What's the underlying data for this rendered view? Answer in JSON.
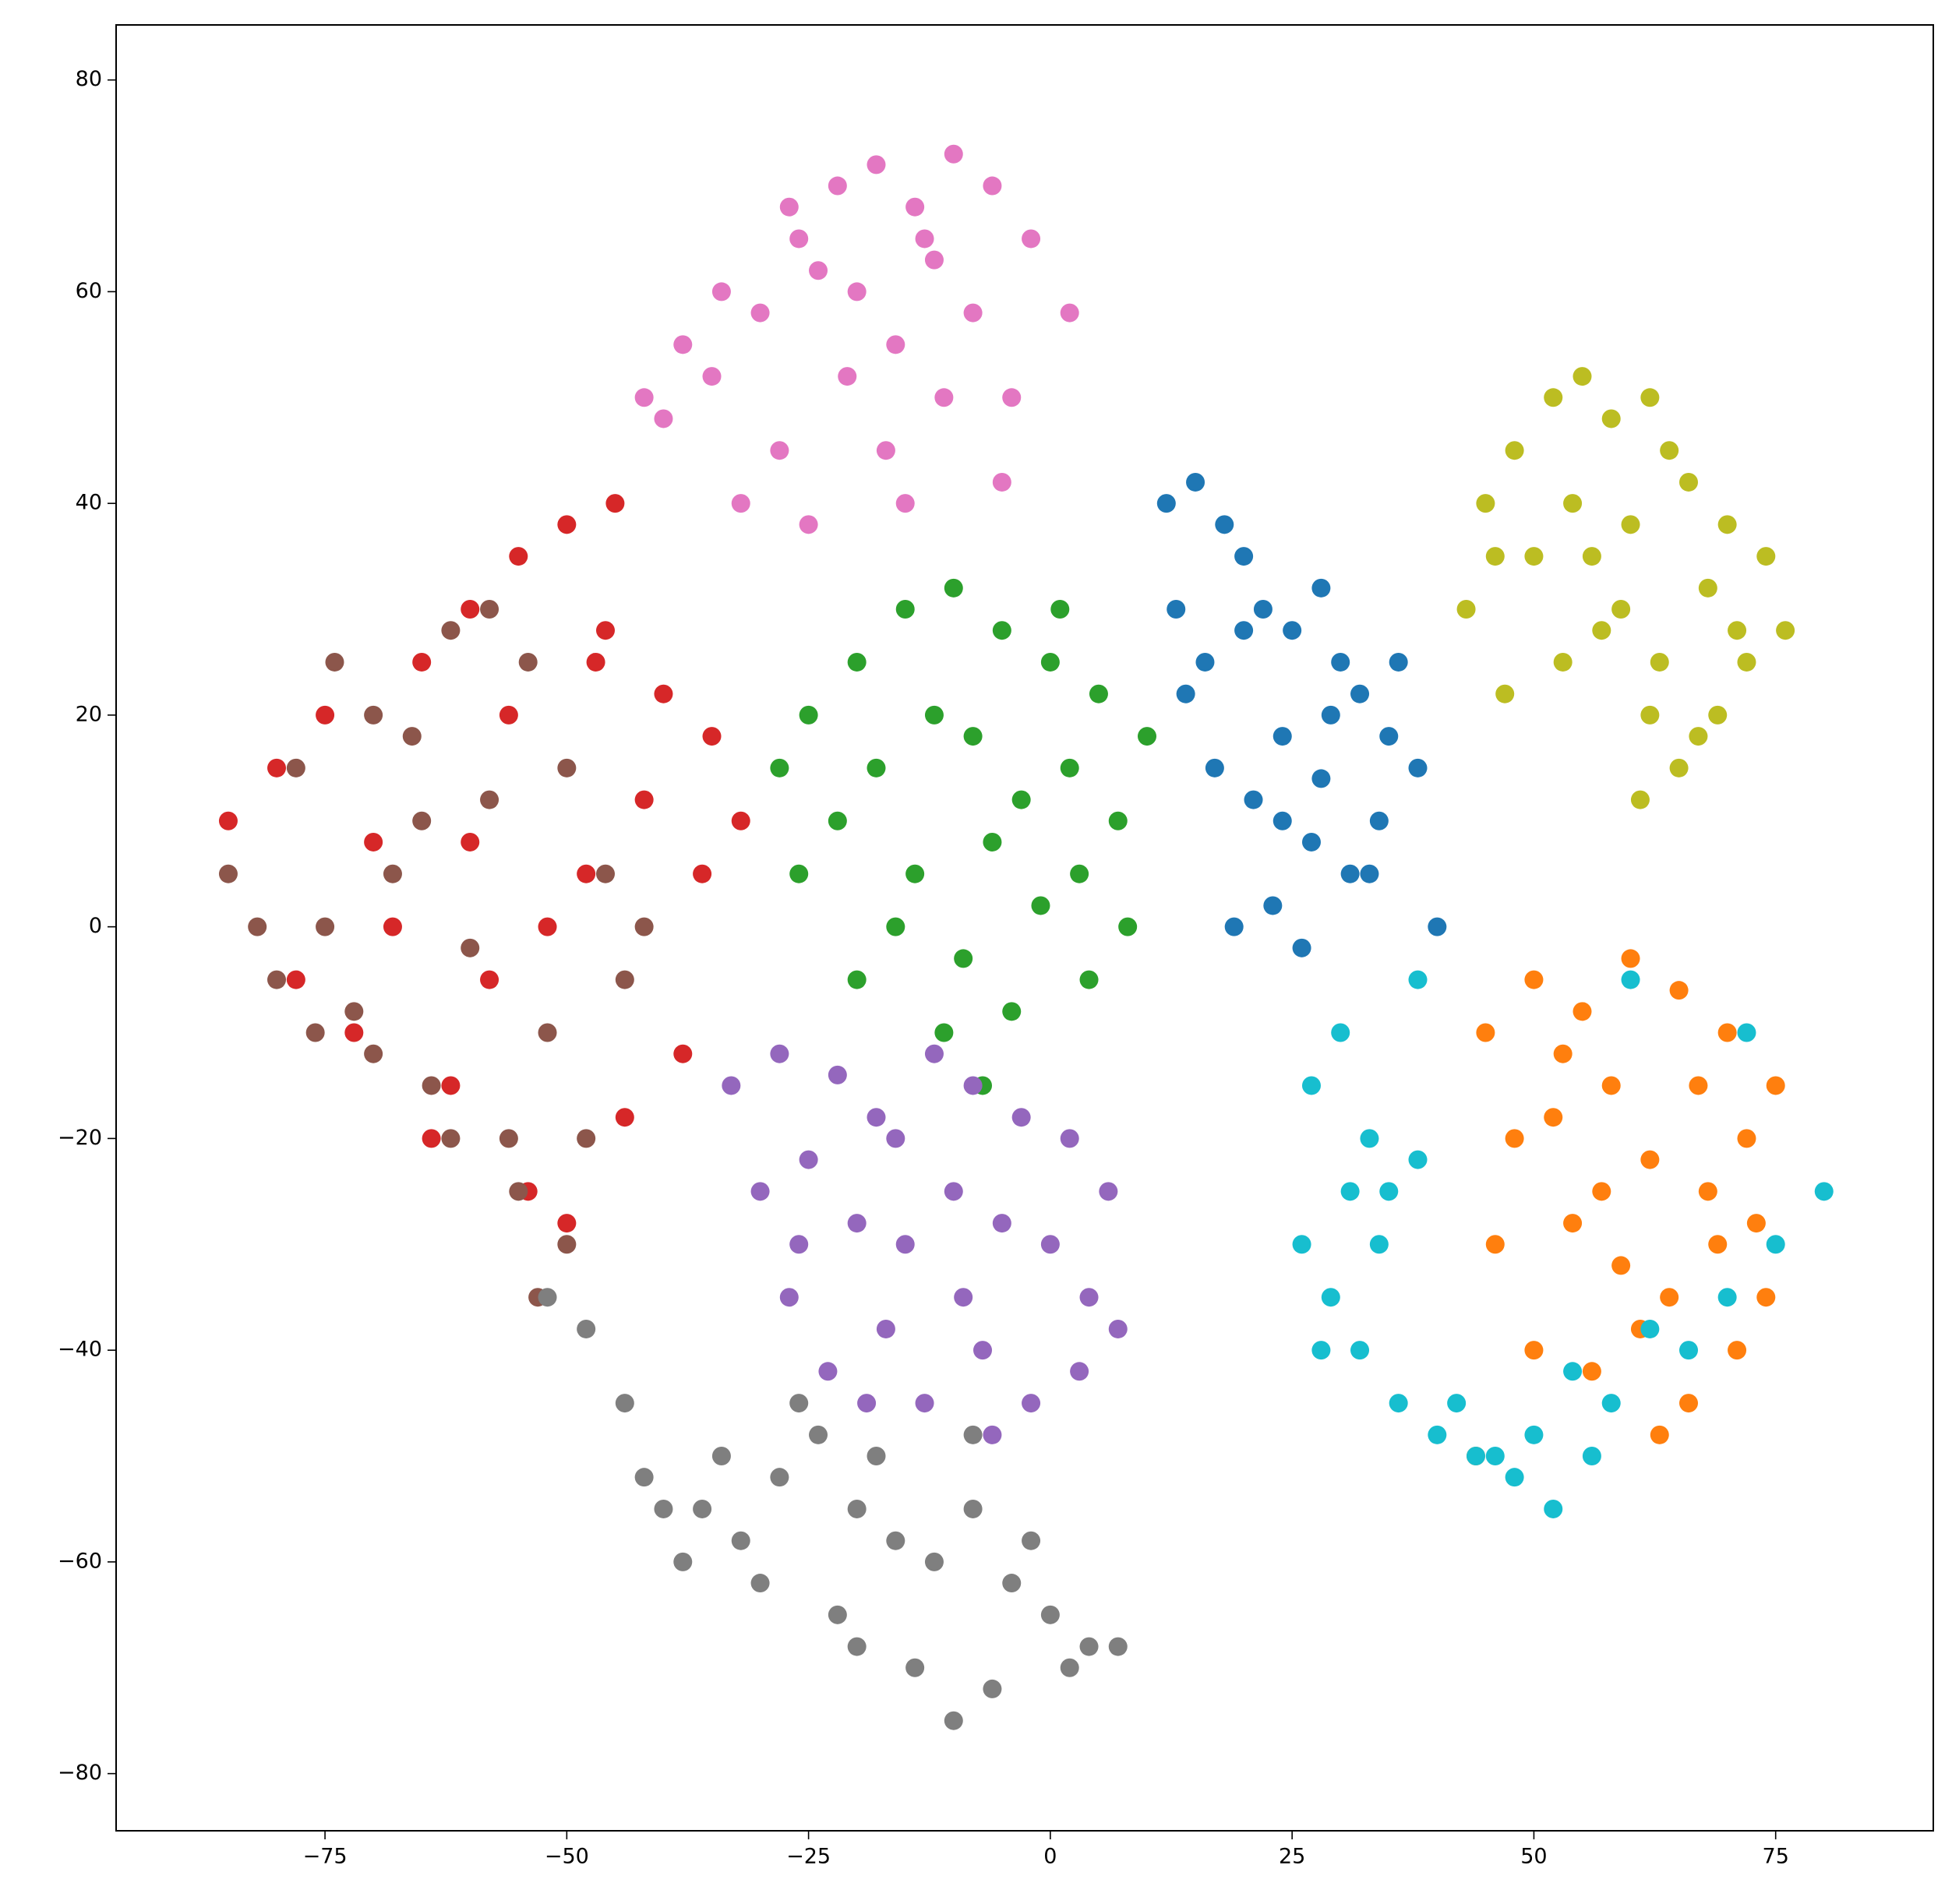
{
  "chart_data": {
    "type": "scatter",
    "xlim": [
      -96.6,
      91.3
    ],
    "ylim": [
      -85.4,
      85.2
    ],
    "xticks": [
      {
        "value": -75,
        "label": "−75"
      },
      {
        "value": -50,
        "label": "−50"
      },
      {
        "value": -25,
        "label": "−25"
      },
      0,
      25,
      50,
      75
    ],
    "yticks": [
      {
        "value": -80,
        "label": "−80"
      },
      {
        "value": -60,
        "label": "−60"
      },
      {
        "value": -40,
        "label": "−40"
      },
      {
        "value": -20,
        "label": "−20"
      },
      0,
      20,
      40,
      60,
      80
    ],
    "grid": false,
    "series": [
      {
        "color": "#1f77b4",
        "x": [
          12,
          15,
          18,
          20,
          22,
          25,
          28,
          30,
          32,
          35,
          14,
          17,
          21,
          24,
          27,
          31,
          34,
          38,
          19,
          23,
          26,
          29,
          16,
          13,
          33,
          36,
          20,
          24,
          28,
          40
        ],
        "values": [
          40,
          42,
          38,
          35,
          30,
          28,
          32,
          25,
          22,
          18,
          22,
          15,
          12,
          10,
          8,
          5,
          10,
          15,
          0,
          2,
          -2,
          20,
          25,
          30,
          5,
          25,
          28,
          18,
          14,
          0
        ]
      },
      {
        "color": "#ff7f0e",
        "x": [
          45,
          50,
          55,
          60,
          65,
          70,
          75,
          48,
          52,
          58,
          62,
          68,
          72,
          46,
          54,
          59,
          64,
          69,
          74,
          50,
          56,
          61,
          66,
          71,
          44,
          63,
          57,
          53,
          67,
          73
        ],
        "values": [
          -10,
          -5,
          -8,
          -3,
          -6,
          -10,
          -15,
          -20,
          -18,
          -15,
          -22,
          -25,
          -20,
          -30,
          -28,
          -32,
          -35,
          -30,
          -35,
          -40,
          -42,
          -38,
          -45,
          -40,
          -50,
          -48,
          -25,
          -12,
          -15,
          -28
        ]
      },
      {
        "color": "#2ca02c",
        "x": [
          -28,
          -25,
          -20,
          -15,
          -10,
          -5,
          0,
          5,
          10,
          -22,
          -18,
          -12,
          -8,
          -3,
          2,
          7,
          -26,
          -14,
          -6,
          3,
          8,
          -16,
          -9,
          -1,
          4,
          -20,
          -11,
          -4,
          -7,
          1
        ],
        "values": [
          15,
          20,
          25,
          30,
          32,
          28,
          25,
          22,
          18,
          10,
          15,
          20,
          18,
          12,
          15,
          10,
          5,
          5,
          8,
          5,
          0,
          0,
          -3,
          2,
          -5,
          -5,
          -10,
          -8,
          -15,
          30
        ]
      },
      {
        "color": "#d62728",
        "x": [
          -85,
          -80,
          -75,
          -70,
          -65,
          -60,
          -55,
          -50,
          -45,
          -40,
          -35,
          -32,
          -78,
          -72,
          -62,
          -58,
          -52,
          -48,
          -42,
          -38,
          -68,
          -56,
          -46,
          -36,
          -64,
          -54,
          -44,
          -50,
          -47,
          -60
        ],
        "values": [
          10,
          15,
          20,
          8,
          25,
          30,
          35,
          38,
          40,
          22,
          18,
          10,
          -5,
          -10,
          -15,
          -5,
          0,
          5,
          12,
          -12,
          0,
          20,
          28,
          5,
          -20,
          -25,
          -18,
          -28,
          25,
          8
        ]
      },
      {
        "color": "#9467bd",
        "x": [
          -33,
          -28,
          -22,
          -18,
          -12,
          -8,
          -3,
          2,
          6,
          -30,
          -25,
          -20,
          -15,
          -10,
          -5,
          0,
          4,
          -27,
          -17,
          -7,
          3,
          -23,
          -13,
          -2,
          -26,
          -16,
          -6,
          -9,
          -19,
          7
        ],
        "values": [
          -15,
          -12,
          -14,
          -18,
          -12,
          -15,
          -18,
          -20,
          -25,
          -25,
          -22,
          -28,
          -30,
          -25,
          -28,
          -30,
          -35,
          -35,
          -38,
          -40,
          -42,
          -42,
          -45,
          -45,
          -30,
          -20,
          -48,
          -35,
          -45,
          -38
        ]
      },
      {
        "color": "#8c564b",
        "x": [
          -85,
          -82,
          -78,
          -74,
          -70,
          -66,
          -62,
          -58,
          -54,
          -50,
          -46,
          -42,
          -80,
          -76,
          -72,
          -68,
          -64,
          -60,
          -56,
          -52,
          -48,
          -44,
          -75,
          -65,
          -55,
          -50,
          -58,
          -70,
          -53,
          -62
        ],
        "values": [
          5,
          0,
          15,
          25,
          20,
          18,
          28,
          30,
          25,
          15,
          5,
          0,
          -5,
          -10,
          -8,
          5,
          -15,
          -2,
          -20,
          -10,
          -20,
          -5,
          0,
          10,
          -25,
          -30,
          12,
          -12,
          -35,
          -20
        ]
      },
      {
        "color": "#e377c2",
        "x": [
          -42,
          -38,
          -34,
          -30,
          -26,
          -22,
          -18,
          -14,
          -10,
          -6,
          -2,
          2,
          -40,
          -35,
          -28,
          -24,
          -20,
          -16,
          -12,
          -8,
          -4,
          -32,
          -25,
          -17,
          -11,
          -5,
          -27,
          -15,
          -21,
          -13
        ],
        "values": [
          50,
          55,
          60,
          58,
          65,
          70,
          72,
          68,
          73,
          70,
          65,
          58,
          48,
          52,
          45,
          62,
          60,
          55,
          63,
          58,
          50,
          40,
          38,
          45,
          50,
          42,
          68,
          40,
          52,
          65
        ]
      },
      {
        "color": "#7f7f7f",
        "x": [
          -52,
          -48,
          -44,
          -40,
          -36,
          -32,
          -28,
          -24,
          -20,
          -16,
          -12,
          -8,
          -4,
          0,
          4,
          7,
          -38,
          -30,
          -22,
          -14,
          -6,
          2,
          -26,
          -18,
          -10,
          -2,
          -34,
          -42,
          -20,
          -8
        ],
        "values": [
          -35,
          -38,
          -45,
          -55,
          -55,
          -58,
          -52,
          -48,
          -55,
          -58,
          -60,
          -55,
          -62,
          -65,
          -68,
          -68,
          -60,
          -62,
          -65,
          -70,
          -72,
          -70,
          -45,
          -50,
          -75,
          -58,
          -50,
          -52,
          -68,
          -48
        ]
      },
      {
        "color": "#bcbd22",
        "x": [
          45,
          48,
          52,
          55,
          58,
          62,
          66,
          70,
          74,
          76,
          43,
          50,
          54,
          60,
          64,
          68,
          72,
          47,
          57,
          63,
          69,
          65,
          61,
          67,
          53,
          59,
          71,
          46,
          56,
          62
        ],
        "values": [
          40,
          45,
          50,
          52,
          48,
          50,
          42,
          38,
          35,
          28,
          30,
          35,
          40,
          38,
          45,
          32,
          25,
          22,
          28,
          25,
          20,
          15,
          12,
          18,
          25,
          30,
          28,
          35,
          35,
          20
        ]
      },
      {
        "color": "#17becf",
        "x": [
          27,
          30,
          33,
          35,
          38,
          26,
          29,
          32,
          36,
          40,
          44,
          48,
          52,
          56,
          28,
          34,
          38,
          42,
          46,
          50,
          54,
          58,
          62,
          66,
          70,
          75,
          80,
          31,
          60,
          72
        ],
        "values": [
          -15,
          -10,
          -20,
          -25,
          -5,
          -30,
          -35,
          -40,
          -45,
          -48,
          -50,
          -52,
          -55,
          -50,
          -40,
          -30,
          -22,
          -45,
          -50,
          -48,
          -42,
          -45,
          -38,
          -40,
          -35,
          -30,
          -25,
          -25,
          -5,
          -10
        ]
      }
    ]
  }
}
